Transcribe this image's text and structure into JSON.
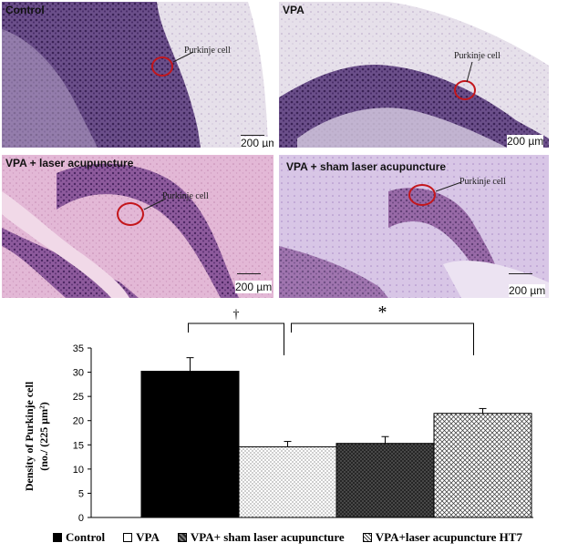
{
  "panels": [
    {
      "label": "Control",
      "cell_label": "Purkinje cell",
      "scale": "200 µm"
    },
    {
      "label": "VPA",
      "cell_label": "Purkinje cell",
      "scale": "200 µm"
    },
    {
      "label": "VPA +  laser acupuncture",
      "cell_label": "Purkinje cell",
      "scale": "200 µm"
    },
    {
      "label": "VPA + sham  laser acupuncture",
      "cell_label": "Purkinje cell",
      "scale": "200 µm"
    }
  ],
  "chart_data": {
    "type": "bar",
    "categories": [
      "Control",
      "VPA",
      "VPA+ sham laser acupuncture",
      "VPA+laser acupuncture HT7"
    ],
    "values": [
      30.2,
      14.6,
      15.3,
      21.5
    ],
    "errors": [
      2.8,
      1.1,
      1.4,
      1.0
    ],
    "ylabel_line1": "Density of Purkinje cell",
    "ylabel_line2": "(no./ (225 µm²)",
    "ylim": [
      0,
      35
    ],
    "yticks": [
      0,
      5,
      10,
      15,
      20,
      25,
      30,
      35
    ],
    "significance": [
      {
        "between": [
          0,
          1
        ],
        "symbol": "†"
      },
      {
        "between": [
          1,
          3
        ],
        "symbol": "*"
      }
    ],
    "legend_placement": "bottom",
    "fills": [
      "solid-black",
      "light-dots",
      "dark-crosshatch",
      "medium-crosshatch"
    ]
  },
  "legend": [
    {
      "label": "Control"
    },
    {
      "label": "VPA"
    },
    {
      "label": "VPA+ sham laser acupuncture"
    },
    {
      "label": "VPA+laser acupuncture HT7"
    }
  ]
}
